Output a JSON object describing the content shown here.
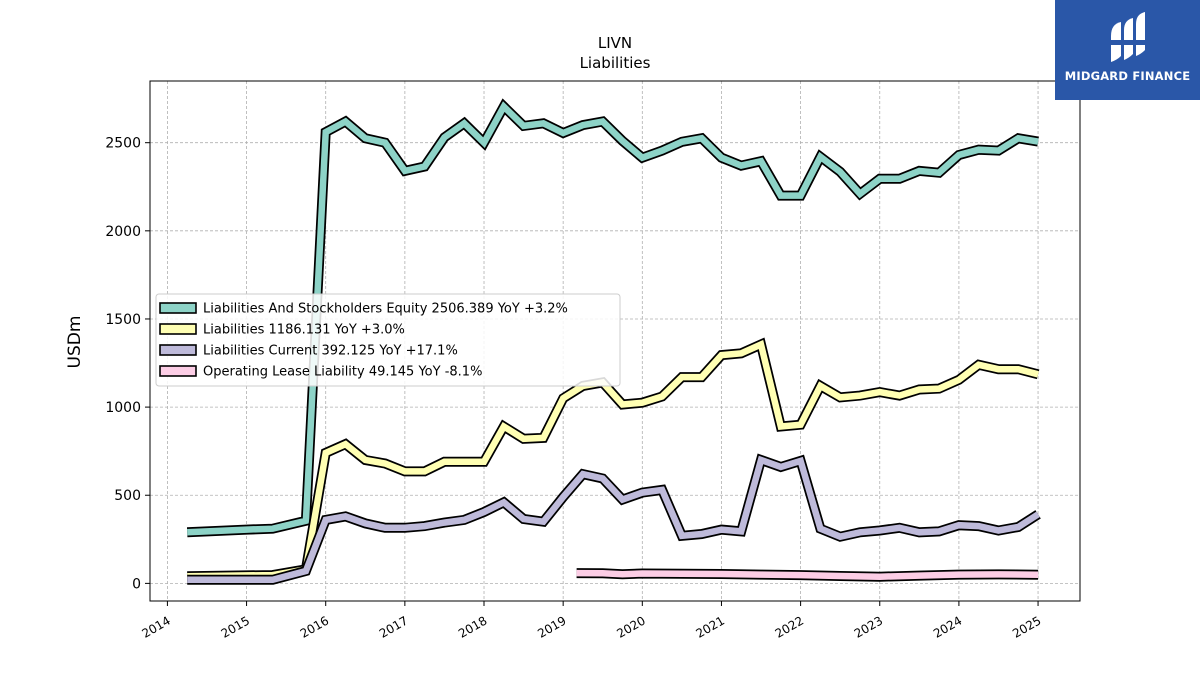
{
  "chart_data": {
    "type": "line",
    "title": "LIVN",
    "subtitle": "Liabilities",
    "ylabel": "USDm",
    "xlabel": "",
    "xlim": [
      2013.78,
      2025.53
    ],
    "ylim": [
      -100,
      2850
    ],
    "x_ticks": [
      2014,
      2015,
      2016,
      2017,
      2018,
      2019,
      2020,
      2021,
      2022,
      2023,
      2024,
      2025
    ],
    "y_ticks": [
      0,
      500,
      1000,
      1500,
      2000,
      2500
    ],
    "grid": true,
    "legend_position": "center-left",
    "series": [
      {
        "name": "Liabilities And Stockholders Equity",
        "legend_label": "Liabilities And Stockholders Equity  2506.389 YoY +3.2%",
        "color": "#8dd3c7",
        "x": [
          2014.25,
          2015.0,
          2015.33,
          2015.75,
          2016.0,
          2016.25,
          2016.5,
          2016.75,
          2017.0,
          2017.25,
          2017.5,
          2017.75,
          2018.0,
          2018.25,
          2018.5,
          2018.75,
          2019.0,
          2019.25,
          2019.5,
          2019.75,
          2020.0,
          2020.25,
          2020.5,
          2020.75,
          2021.0,
          2021.25,
          2021.5,
          2021.75,
          2022.0,
          2022.25,
          2022.5,
          2022.75,
          2023.0,
          2023.25,
          2023.5,
          2023.75,
          2024.0,
          2024.25,
          2024.5,
          2024.75,
          2025.0
        ],
        "y": [
          290,
          305,
          310,
          355,
          2560,
          2620,
          2525,
          2500,
          2340,
          2365,
          2530,
          2610,
          2500,
          2705,
          2595,
          2610,
          2555,
          2600,
          2620,
          2510,
          2415,
          2455,
          2505,
          2525,
          2415,
          2370,
          2395,
          2200,
          2200,
          2420,
          2335,
          2210,
          2295,
          2295,
          2340,
          2330,
          2430,
          2460,
          2455,
          2525,
          2506
        ]
      },
      {
        "name": "Liabilities",
        "legend_label": "Liabilities  1186.131 YoY +3.0%",
        "color": "#ffffb3",
        "x": [
          2014.25,
          2015.0,
          2015.33,
          2015.75,
          2016.0,
          2016.25,
          2016.5,
          2016.75,
          2017.0,
          2017.25,
          2017.5,
          2017.75,
          2018.0,
          2018.25,
          2018.5,
          2018.75,
          2019.0,
          2019.25,
          2019.5,
          2019.75,
          2020.0,
          2020.25,
          2020.5,
          2020.75,
          2021.0,
          2021.25,
          2021.5,
          2021.75,
          2022.0,
          2022.25,
          2022.5,
          2022.75,
          2023.0,
          2023.25,
          2023.5,
          2023.75,
          2024.0,
          2024.25,
          2024.5,
          2024.75,
          2025.0
        ],
        "y": [
          40,
          45,
          47,
          80,
          740,
          790,
          700,
          680,
          635,
          635,
          690,
          690,
          690,
          890,
          820,
          825,
          1050,
          1120,
          1140,
          1015,
          1025,
          1060,
          1170,
          1170,
          1295,
          1305,
          1355,
          890,
          900,
          1120,
          1055,
          1065,
          1085,
          1065,
          1100,
          1105,
          1155,
          1240,
          1215,
          1215,
          1186
        ]
      },
      {
        "name": "Liabilities Current",
        "legend_label": "Liabilities Current  392.125 YoY +17.1%",
        "color": "#bebada",
        "x": [
          2014.25,
          2015.0,
          2015.33,
          2015.75,
          2016.0,
          2016.25,
          2016.5,
          2016.75,
          2017.0,
          2017.25,
          2017.5,
          2017.75,
          2018.0,
          2018.25,
          2018.5,
          2018.75,
          2019.0,
          2019.25,
          2019.5,
          2019.75,
          2020.0,
          2020.25,
          2020.5,
          2020.75,
          2021.0,
          2021.25,
          2021.5,
          2021.75,
          2022.0,
          2022.25,
          2022.5,
          2022.75,
          2023.0,
          2023.25,
          2023.5,
          2023.75,
          2024.0,
          2024.25,
          2024.5,
          2024.75,
          2025.0
        ],
        "y": [
          20,
          20,
          20,
          70,
          360,
          380,
          340,
          315,
          315,
          325,
          345,
          360,
          405,
          460,
          365,
          350,
          490,
          620,
          595,
          475,
          515,
          530,
          270,
          280,
          305,
          295,
          700,
          660,
          695,
          310,
          265,
          290,
          300,
          315,
          290,
          295,
          330,
          325,
          300,
          320,
          392
        ]
      },
      {
        "name": "Operating Lease Liability",
        "legend_label": "Operating Lease Liability  49.145 YoY -8.1%",
        "color": "#fccde5",
        "x": [
          2019.17,
          2019.5,
          2019.75,
          2020.0,
          2020.5,
          2021.0,
          2021.5,
          2022.0,
          2022.5,
          2023.0,
          2023.5,
          2024.0,
          2024.5,
          2025.0
        ],
        "y": [
          58,
          57,
          52,
          56,
          55,
          53,
          50,
          47,
          42,
          38,
          44,
          50,
          51,
          49
        ]
      }
    ]
  },
  "branding": {
    "logo_text": "MIDGARD FINANCE",
    "logo_icon": "midgard-logo-icon",
    "logo_color": "#2a57a8"
  }
}
